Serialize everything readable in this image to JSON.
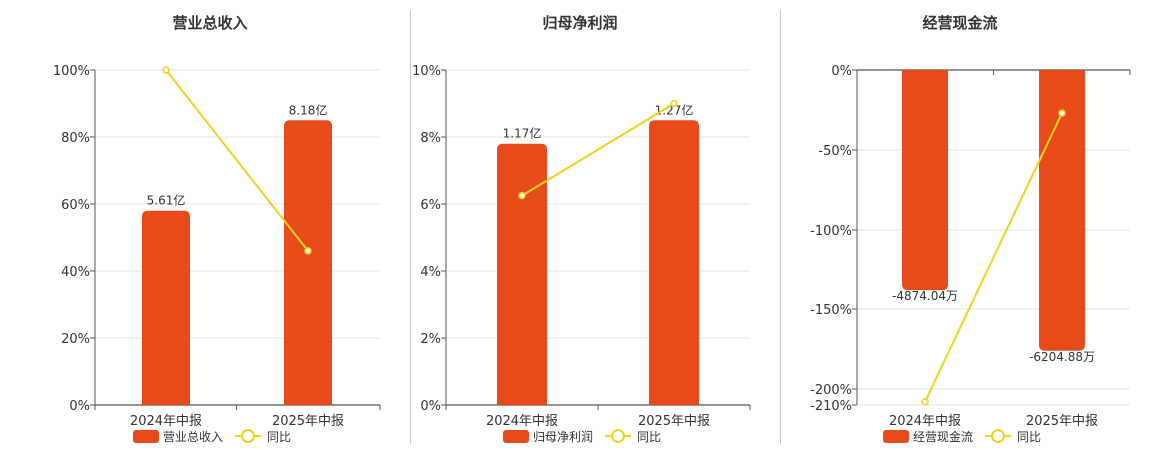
{
  "chart_data": [
    {
      "type": "bar",
      "title": "营业总收入",
      "categories": [
        "2024年中报",
        "2025年中报"
      ],
      "series": [
        {
          "name": "营业总收入",
          "kind": "bar",
          "values": [
            58,
            85
          ],
          "labels": [
            "5.61亿",
            "8.18亿"
          ]
        },
        {
          "name": "同比",
          "kind": "line",
          "values": [
            100,
            46
          ]
        }
      ],
      "y_ticks": [
        "0%",
        "20%",
        "40%",
        "60%",
        "80%",
        "100%"
      ],
      "ylim": [
        0,
        100
      ],
      "grid": true,
      "legend": "bottom"
    },
    {
      "type": "bar",
      "title": "归母净利润",
      "categories": [
        "2024年中报",
        "2025年中报"
      ],
      "series": [
        {
          "name": "归母净利润",
          "kind": "bar",
          "values": [
            7.8,
            8.5
          ],
          "labels": [
            "1.17亿",
            "1.27亿"
          ]
        },
        {
          "name": "同比",
          "kind": "line",
          "values": [
            6.25,
            9.0
          ]
        }
      ],
      "y_ticks": [
        "0%",
        "2%",
        "4%",
        "6%",
        "8%",
        "10%"
      ],
      "ylim": [
        0,
        10
      ],
      "grid": true,
      "legend": "bottom"
    },
    {
      "type": "bar",
      "title": "经营现金流",
      "categories": [
        "2024年中报",
        "2025年中报"
      ],
      "series": [
        {
          "name": "经营现金流",
          "kind": "bar",
          "values": [
            -138,
            -176
          ],
          "labels": [
            "-4874.04万",
            "-6204.88万"
          ]
        },
        {
          "name": "同比",
          "kind": "line",
          "values": [
            -208,
            -27
          ]
        }
      ],
      "y_ticks": [
        "0%",
        "-50%",
        "-100%",
        "-150%",
        "-200%",
        "-210%"
      ],
      "ylim": [
        -210,
        0
      ],
      "grid": true,
      "legend": "bottom"
    }
  ],
  "colors": {
    "bar": "#e84b1a",
    "line": "#f0d21e"
  }
}
